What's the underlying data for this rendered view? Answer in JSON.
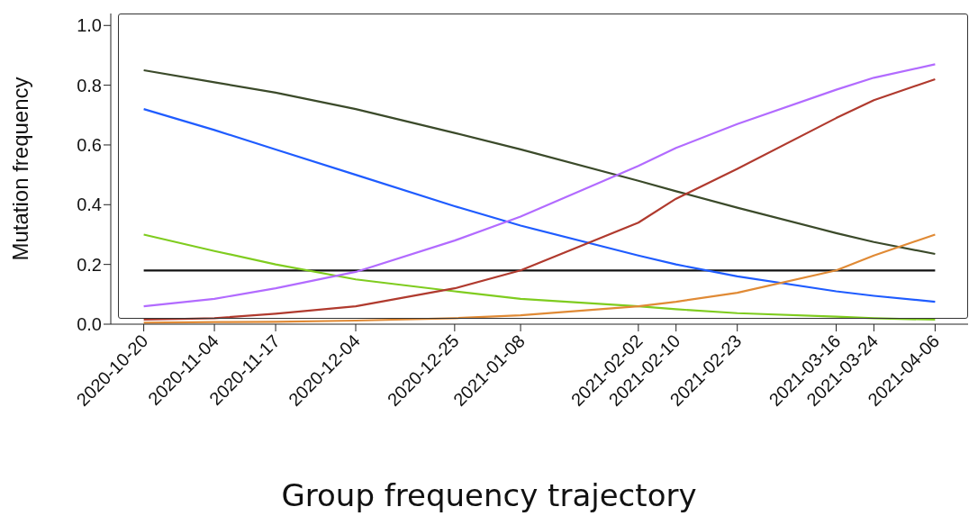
{
  "chart_data": {
    "type": "line",
    "title": "Group frequency trajectory",
    "ylabel": "Mutation frequency",
    "x": [
      "2020-10-20",
      "2020-11-04",
      "2020-11-17",
      "2020-12-04",
      "2020-12-25",
      "2021-01-08",
      "2021-02-02",
      "2021-02-10",
      "2021-02-23",
      "2021-03-16",
      "2021-03-24",
      "2021-04-06"
    ],
    "series": [
      {
        "color": "#3b4a2a",
        "values": [
          0.85,
          0.81,
          0.775,
          0.72,
          0.64,
          0.585,
          0.48,
          0.445,
          0.39,
          0.305,
          0.275,
          0.235
        ]
      },
      {
        "color": "#1f5cff",
        "values": [
          0.72,
          0.65,
          0.585,
          0.5,
          0.395,
          0.33,
          0.23,
          0.2,
          0.16,
          0.11,
          0.095,
          0.075
        ]
      },
      {
        "color": "#7fcc1f",
        "values": [
          0.3,
          0.245,
          0.2,
          0.15,
          0.11,
          0.085,
          0.06,
          0.05,
          0.037,
          0.025,
          0.02,
          0.015
        ]
      },
      {
        "color": "#b26bff",
        "values": [
          0.06,
          0.085,
          0.12,
          0.175,
          0.28,
          0.36,
          0.53,
          0.59,
          0.67,
          0.785,
          0.825,
          0.87
        ]
      },
      {
        "color": "#b03a2e",
        "values": [
          0.015,
          0.02,
          0.035,
          0.06,
          0.12,
          0.18,
          0.34,
          0.42,
          0.52,
          0.69,
          0.75,
          0.82
        ]
      },
      {
        "color": "#e08a35",
        "values": [
          0.005,
          0.007,
          0.008,
          0.012,
          0.02,
          0.03,
          0.06,
          0.075,
          0.105,
          0.18,
          0.23,
          0.3
        ]
      }
    ],
    "ref_lines": [
      {
        "axis": "y",
        "value": 0.18,
        "color": "#111111"
      }
    ],
    "xlim": [
      "2020-10-13",
      "2021-04-13"
    ],
    "xticks": [
      "2020-10-20",
      "2020-11-04",
      "2020-11-17",
      "2020-12-04",
      "2020-12-25",
      "2021-01-08",
      "2021-02-02",
      "2021-02-10",
      "2021-02-23",
      "2021-03-16",
      "2021-03-24",
      "2021-04-06"
    ],
    "ylim": [
      0,
      1.04
    ],
    "yticks": [
      {
        "value": 0,
        "label": "0.0"
      },
      0.2,
      0.4,
      0.6,
      0.8,
      {
        "value": 1,
        "label": "1.0"
      }
    ],
    "grid": false,
    "legend": false,
    "marker": "none",
    "line_style": "solid"
  }
}
